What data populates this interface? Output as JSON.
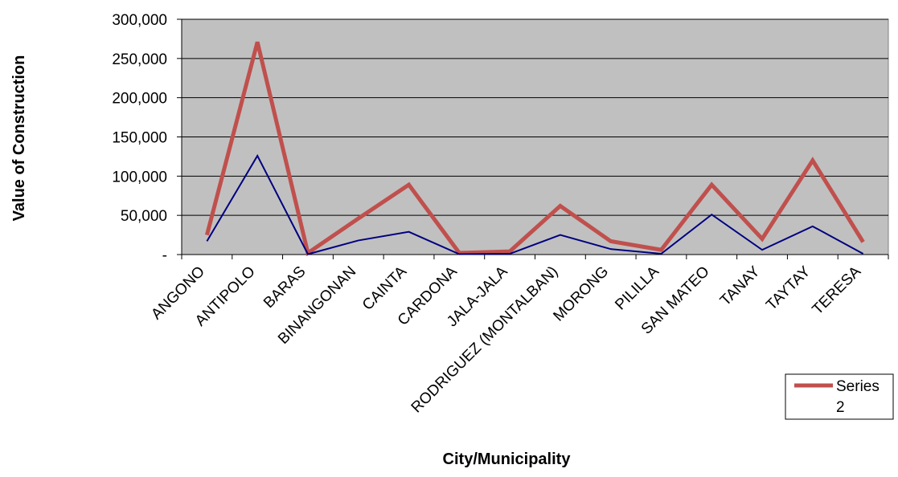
{
  "chart_data": {
    "type": "line",
    "title": "",
    "xlabel": "City/Municipality",
    "ylabel": "Value of Construction",
    "categories": [
      "ANGONO",
      "ANTIPOLO",
      "BARAS",
      "BINANGONAN",
      "CAINTA",
      "CARDONA",
      "JALA-JALA",
      "RODRIGUEZ (MONTALBAN)",
      "MORONG",
      "PILILLA",
      "SAN MATEO",
      "TANAY",
      "TAYTAY",
      "TERESA"
    ],
    "ylim": [
      0,
      300000
    ],
    "yticks": [
      0,
      50000,
      100000,
      150000,
      200000,
      250000,
      300000
    ],
    "ytick_labels": [
      "-",
      "50,000",
      "100,000",
      "150,000",
      "200,000",
      "250,000",
      "300,000"
    ],
    "grid": true,
    "plot_background": "#c0c0c0",
    "legend_position": "bottom-right",
    "series": [
      {
        "name": "",
        "color": "#000080",
        "values": [
          17000,
          126000,
          500,
          18000,
          29000,
          500,
          1000,
          25000,
          7000,
          1000,
          51000,
          6000,
          36000,
          1000
        ]
      },
      {
        "name": "Series 2",
        "color": "#c0504d",
        "values": [
          25000,
          271000,
          2000,
          46000,
          89000,
          2000,
          4000,
          62000,
          17000,
          6000,
          89000,
          20000,
          120000,
          16000
        ]
      }
    ]
  }
}
